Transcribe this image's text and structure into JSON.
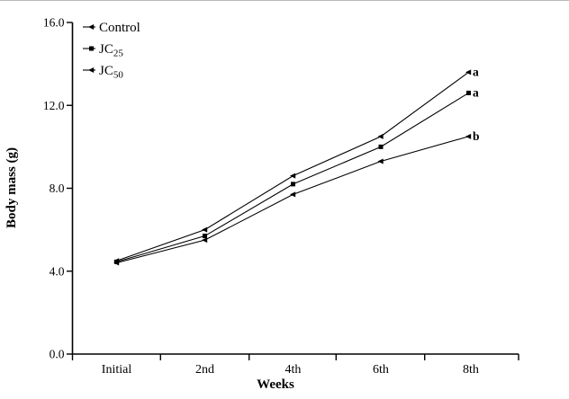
{
  "figure": {
    "background": "#ffffff",
    "border_top_color": "#b9b9b9"
  },
  "chart_data": {
    "type": "line",
    "title": "",
    "xlabel": "Weeks",
    "ylabel": "Body mass (g)",
    "categories": [
      "Initial",
      "2nd",
      "4th",
      "6th",
      "8th"
    ],
    "yticks": [
      "0.0",
      "4.0",
      "8.0",
      "12.0",
      "16.0"
    ],
    "ytick_values": [
      0,
      4,
      8,
      12,
      16
    ],
    "ylim": [
      0,
      16
    ],
    "grid": false,
    "line_color": "#000000",
    "text_color": "#000000",
    "legend_position": "top-left-inside",
    "series": [
      {
        "name": "Control",
        "label_base": "Control",
        "label_sub": "",
        "marker": "triangle-left",
        "values": [
          4.5,
          6.0,
          8.6,
          10.5,
          13.6
        ],
        "end_annotation": "a"
      },
      {
        "name": "JC25",
        "label_base": "JC",
        "label_sub": "25",
        "marker": "square",
        "values": [
          4.45,
          5.7,
          8.2,
          10.0,
          12.6
        ],
        "end_annotation": "a"
      },
      {
        "name": "JC50",
        "label_base": "JC",
        "label_sub": "50",
        "marker": "triangle-left",
        "values": [
          4.4,
          5.5,
          7.7,
          9.3,
          10.5
        ],
        "end_annotation": "b"
      }
    ]
  }
}
